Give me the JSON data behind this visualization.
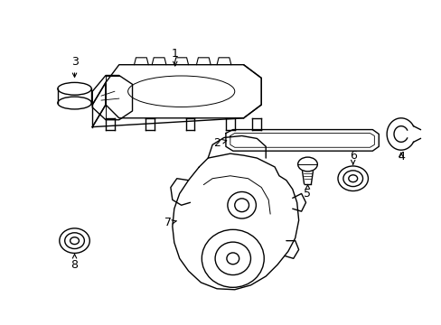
{
  "bg_color": "#ffffff",
  "line_color": "#000000",
  "lw": 1.0,
  "figsize": [
    4.89,
    3.6
  ],
  "dpi": 100
}
